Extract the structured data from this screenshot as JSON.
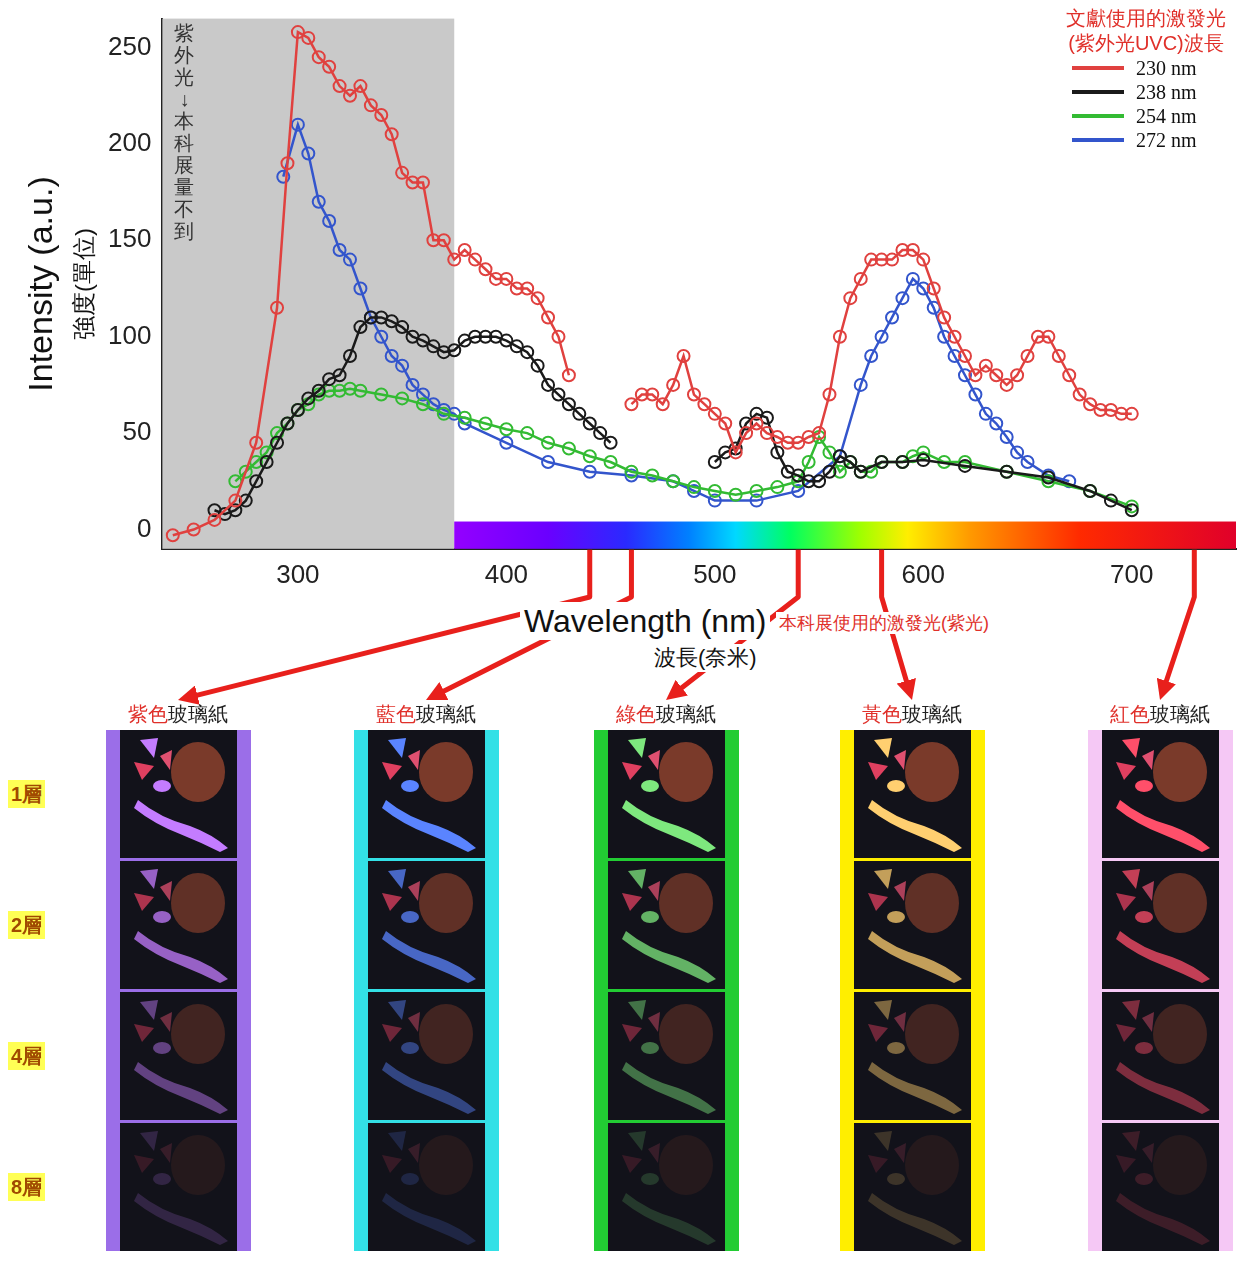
{
  "chart_data": {
    "type": "line",
    "x_label": "Wavelength (nm)",
    "x_label_sub": "波長(奈米)",
    "y_label": "Intensity (a.u.)",
    "y_label_sub": "強度(單位)",
    "xlim": [
      235,
      750
    ],
    "xticks": [
      300,
      400,
      500,
      600,
      700
    ],
    "ylim": [
      -10,
      265
    ],
    "yticks": [
      0,
      50,
      100,
      150,
      200,
      250
    ],
    "grid": false,
    "legend": "upper right",
    "legend_title": [
      "文獻使用的激發光",
      "(紫外光UVC)波長"
    ],
    "marker": "open_circle",
    "line_style": "solid",
    "series": [
      {
        "name": "230 nm",
        "color": "#e0413f",
        "x": [
          240,
          250,
          260,
          270,
          280,
          290,
          295,
          300,
          305,
          310,
          315,
          320,
          325,
          330,
          335,
          340,
          345,
          350,
          355,
          360,
          365,
          370,
          375,
          380,
          385,
          390,
          395,
          400,
          405,
          410,
          415,
          420,
          425,
          430,
          440,
          460,
          465,
          470,
          475,
          480,
          485,
          490,
          495,
          500,
          505,
          510,
          515,
          520,
          525,
          530,
          535,
          540,
          545,
          550,
          555,
          560,
          565,
          570,
          575,
          580,
          585,
          590,
          595,
          600,
          605,
          610,
          615,
          620,
          625,
          630,
          635,
          640,
          645,
          650,
          655,
          660,
          665,
          670,
          675,
          680,
          685,
          690,
          695,
          700
        ],
        "values": [
          -3,
          0,
          5,
          15,
          45,
          115,
          190,
          258,
          255,
          245,
          240,
          230,
          225,
          230,
          220,
          215,
          205,
          185,
          180,
          180,
          150,
          150,
          140,
          145,
          140,
          135,
          130,
          130,
          125,
          125,
          120,
          110,
          100,
          80,
          null,
          65,
          70,
          70,
          65,
          75,
          90,
          70,
          65,
          60,
          55,
          40,
          50,
          55,
          50,
          48,
          45,
          45,
          48,
          50,
          70,
          100,
          120,
          130,
          140,
          140,
          140,
          145,
          145,
          140,
          125,
          110,
          100,
          90,
          80,
          85,
          80,
          75,
          80,
          90,
          100,
          100,
          90,
          80,
          70,
          65,
          62,
          62,
          60,
          60
        ]
      },
      {
        "name": "238 nm",
        "color": "#1a1a1a",
        "x": [
          260,
          265,
          270,
          275,
          280,
          285,
          290,
          295,
          300,
          305,
          310,
          315,
          320,
          325,
          330,
          335,
          340,
          345,
          350,
          355,
          360,
          365,
          370,
          375,
          380,
          385,
          390,
          395,
          400,
          405,
          410,
          415,
          420,
          425,
          430,
          435,
          440,
          445,
          450,
          475,
          500,
          505,
          510,
          515,
          520,
          525,
          530,
          535,
          540,
          545,
          550,
          555,
          560,
          565,
          570,
          580,
          590,
          600,
          620,
          640,
          660,
          680,
          690,
          700
        ],
        "values": [
          10,
          8,
          10,
          15,
          25,
          35,
          45,
          55,
          62,
          68,
          72,
          78,
          80,
          90,
          105,
          110,
          110,
          108,
          105,
          100,
          98,
          95,
          92,
          93,
          98,
          100,
          100,
          100,
          98,
          95,
          92,
          85,
          75,
          70,
          65,
          60,
          55,
          50,
          45,
          null,
          35,
          40,
          42,
          55,
          60,
          58,
          40,
          30,
          28,
          25,
          25,
          30,
          38,
          35,
          30,
          35,
          35,
          36,
          33,
          30,
          27,
          20,
          15,
          10
        ]
      },
      {
        "name": "254 nm",
        "color": "#33bb33",
        "x": [
          270,
          275,
          280,
          285,
          290,
          295,
          300,
          305,
          310,
          315,
          320,
          325,
          330,
          340,
          350,
          360,
          370,
          380,
          390,
          400,
          410,
          420,
          430,
          440,
          450,
          460,
          470,
          480,
          490,
          500,
          510,
          520,
          530,
          540,
          545,
          550,
          555,
          560,
          565,
          570,
          575,
          580,
          590,
          595,
          600,
          610,
          620,
          640,
          660,
          680,
          700
        ],
        "values": [
          25,
          30,
          35,
          40,
          50,
          55,
          62,
          65,
          70,
          72,
          72,
          73,
          72,
          70,
          68,
          65,
          60,
          58,
          55,
          52,
          50,
          45,
          42,
          38,
          35,
          30,
          28,
          25,
          22,
          20,
          18,
          20,
          22,
          25,
          35,
          48,
          40,
          30,
          35,
          30,
          30,
          35,
          35,
          38,
          40,
          35,
          35,
          30,
          25,
          20,
          12
        ]
      },
      {
        "name": "272 nm",
        "color": "#3355cc",
        "x": [
          293,
          300,
          305,
          310,
          315,
          320,
          325,
          330,
          335,
          340,
          345,
          350,
          355,
          360,
          365,
          370,
          375,
          380,
          400,
          420,
          440,
          460,
          480,
          490,
          500,
          520,
          540,
          560,
          570,
          575,
          580,
          585,
          590,
          595,
          600,
          605,
          610,
          615,
          620,
          625,
          630,
          635,
          640,
          645,
          650,
          660,
          670
        ],
        "values": [
          183,
          210,
          195,
          170,
          160,
          145,
          140,
          125,
          110,
          100,
          90,
          85,
          75,
          70,
          65,
          62,
          60,
          55,
          45,
          35,
          30,
          28,
          25,
          20,
          15,
          15,
          20,
          38,
          75,
          90,
          100,
          110,
          120,
          130,
          125,
          115,
          100,
          90,
          80,
          70,
          60,
          55,
          48,
          40,
          35,
          28,
          25
        ]
      }
    ],
    "annotations": [
      {
        "text": "紫外光↓本科展量不到",
        "shaded_range": [
          235,
          375
        ]
      },
      {
        "text": "本科展使用的激發光(紫光)",
        "spectrum_range": [
          375,
          750
        ]
      }
    ]
  },
  "filters": {
    "titles": [
      "紫色玻璃紙",
      "藍色玻璃紙",
      "綠色玻璃紙",
      "黃色玻璃紙",
      "紅色玻璃紙"
    ],
    "colors": [
      "#9b6ee8",
      "#33e0e6",
      "#22cc33",
      "#ffee00",
      "#f5c8f5"
    ],
    "wavelengths": [
      440,
      460,
      540,
      580,
      730
    ],
    "rows": [
      "1層",
      "2層",
      "4層",
      "8層"
    ]
  }
}
